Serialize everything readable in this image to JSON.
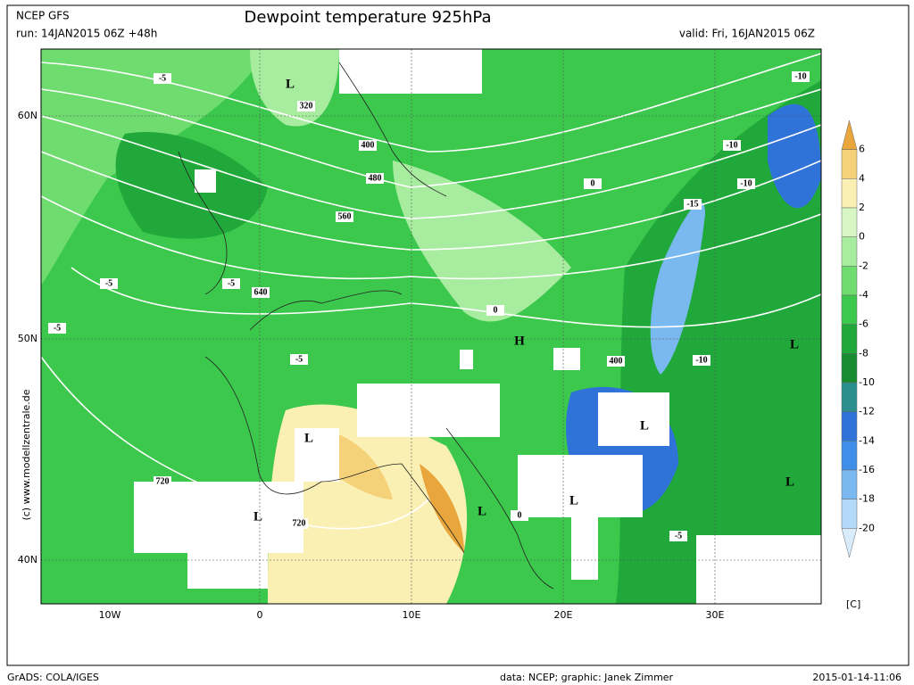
{
  "header": {
    "model": "NCEP GFS",
    "run": "run: 14JAN2015 06Z +48h",
    "title": "Dewpoint temperature 925hPa",
    "valid": "valid: Fri, 16JAN2015 06Z"
  },
  "axes": {
    "lat_labels": [
      "60N",
      "50N",
      "40N"
    ],
    "lon_labels": [
      "10W",
      "0",
      "10E",
      "20E",
      "30E"
    ]
  },
  "colorbar": {
    "labels": [
      "6",
      "4",
      "2",
      "0",
      "-2",
      "-4",
      "-6",
      "-8",
      "-10",
      "-12",
      "-14",
      "-16",
      "-18",
      "-20"
    ],
    "colors": [
      "#e8a63c",
      "#f5d27a",
      "#fbf0b4",
      "#d6f7c4",
      "#a8eca0",
      "#6fdc6f",
      "#3cc84c",
      "#20a83a",
      "#178c30",
      "#2b8f8f",
      "#2f73d8",
      "#3f8fe8",
      "#7ab8f0",
      "#b4d8f8",
      "#d8ecfc"
    ],
    "unit": "[C]"
  },
  "map_labels": [
    "L",
    "320",
    "400",
    "480",
    "560",
    "640",
    "720",
    "720",
    "L",
    "L",
    "H",
    "L",
    "L",
    "L",
    "L",
    "L",
    "400",
    "-10",
    "-10",
    "-10",
    "-15",
    "-10",
    "-5",
    "-5",
    "-5",
    "-5",
    "-5",
    "-5",
    "0",
    "0",
    "0"
  ],
  "side_credit": "(c) www.modellzentrale.de",
  "footer": {
    "left": "GrADS: COLA/IGES",
    "center": "data: NCEP; graphic: Janek Zimmer",
    "right": "2015-01-14-11:06"
  }
}
